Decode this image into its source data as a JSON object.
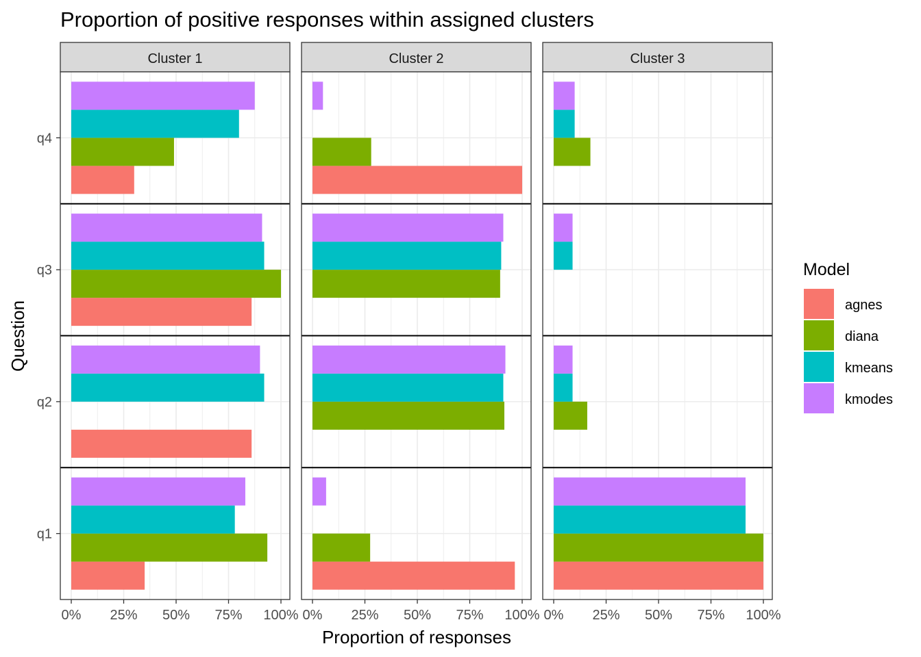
{
  "chart_data": {
    "type": "bar",
    "orientation": "horizontal",
    "title": "Proportion of positive responses within assigned clusters",
    "xlabel": "Proportion of responses",
    "ylabel": "Question",
    "xlim": [
      0,
      1
    ],
    "x_ticks": [
      "0%",
      "25%",
      "50%",
      "75%",
      "100%"
    ],
    "questions": [
      "q4",
      "q3",
      "q2",
      "q1"
    ],
    "legend": {
      "title": "Model",
      "position": "right",
      "items": [
        {
          "name": "agnes",
          "color": "#F8766D"
        },
        {
          "name": "diana",
          "color": "#7CAE00"
        },
        {
          "name": "kmeans",
          "color": "#00BFC4"
        },
        {
          "name": "kmodes",
          "color": "#C77CFF"
        }
      ]
    },
    "panels": [
      {
        "label": "Cluster 1",
        "values": {
          "q4": {
            "agnes": 0.3,
            "diana": 0.49,
            "kmeans": 0.8,
            "kmodes": 0.875
          },
          "q3": {
            "agnes": 0.86,
            "diana": 1.0,
            "kmeans": 0.92,
            "kmodes": 0.91
          },
          "q2": {
            "agnes": 0.86,
            "diana": null,
            "kmeans": 0.92,
            "kmodes": 0.9
          },
          "q1": {
            "agnes": 0.35,
            "diana": 0.935,
            "kmeans": 0.78,
            "kmodes": 0.83
          }
        }
      },
      {
        "label": "Cluster 2",
        "values": {
          "q4": {
            "agnes": 1.0,
            "diana": 0.28,
            "kmeans": null,
            "kmodes": 0.05
          },
          "q3": {
            "agnes": null,
            "diana": 0.895,
            "kmeans": 0.9,
            "kmodes": 0.91
          },
          "q2": {
            "agnes": null,
            "diana": 0.915,
            "kmeans": 0.91,
            "kmodes": 0.92
          },
          "q1": {
            "agnes": 0.965,
            "diana": 0.275,
            "kmeans": null,
            "kmodes": 0.065
          }
        }
      },
      {
        "label": "Cluster 3",
        "values": {
          "q4": {
            "agnes": null,
            "diana": 0.175,
            "kmeans": 0.1,
            "kmodes": 0.1
          },
          "q3": {
            "agnes": null,
            "diana": null,
            "kmeans": 0.09,
            "kmodes": 0.09
          },
          "q2": {
            "agnes": null,
            "diana": 0.16,
            "kmeans": 0.09,
            "kmodes": 0.09
          },
          "q1": {
            "agnes": 1.0,
            "diana": 1.0,
            "kmeans": 0.915,
            "kmodes": 0.915
          }
        }
      }
    ],
    "grid": true
  }
}
